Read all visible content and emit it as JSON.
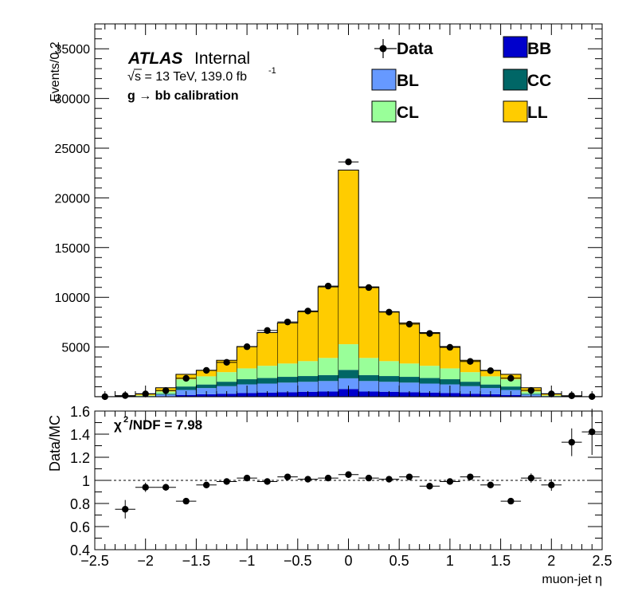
{
  "chart_data": [
    {
      "type": "bar",
      "stacked": true,
      "ylabel": "Events/0.2",
      "ylim": [
        0,
        37500
      ],
      "xlim": [
        -2.5,
        2.5
      ],
      "yticks": [
        "5000",
        "10000",
        "15000",
        "20000",
        "25000",
        "30000",
        "35000"
      ],
      "x": [
        -2.4,
        -2.2,
        -2.0,
        -1.8,
        -1.6,
        -1.4,
        -1.2,
        -1.0,
        -0.8,
        -0.6,
        -0.4,
        -0.2,
        0.0,
        0.2,
        0.4,
        0.6,
        0.8,
        1.0,
        1.2,
        1.4,
        1.6,
        1.8,
        2.0,
        2.2,
        2.4
      ],
      "series": [
        {
          "name": "BB",
          "color": "#0000cc",
          "values": [
            0,
            5,
            15,
            60,
            180,
            250,
            300,
            380,
            420,
            460,
            500,
            520,
            780,
            520,
            500,
            460,
            420,
            380,
            300,
            250,
            180,
            60,
            15,
            5,
            0
          ]
        },
        {
          "name": "BL",
          "color": "#6699ff",
          "values": [
            0,
            10,
            40,
            150,
            500,
            620,
            760,
            860,
            900,
            960,
            1000,
            1060,
            1070,
            1060,
            1000,
            960,
            900,
            860,
            760,
            620,
            500,
            150,
            40,
            10,
            0
          ]
        },
        {
          "name": "CC",
          "color": "#006666",
          "values": [
            0,
            5,
            20,
            90,
            350,
            360,
            450,
            520,
            560,
            580,
            580,
            600,
            850,
            600,
            580,
            580,
            560,
            520,
            450,
            360,
            350,
            90,
            20,
            5,
            0
          ]
        },
        {
          "name": "CL",
          "color": "#99ff99",
          "values": [
            0,
            15,
            60,
            220,
            720,
            820,
            960,
            1090,
            1230,
            1340,
            1500,
            1720,
            2580,
            1720,
            1500,
            1340,
            1230,
            1090,
            960,
            820,
            720,
            220,
            60,
            15,
            0
          ]
        },
        {
          "name": "LL",
          "color": "#ffcc00",
          "values": [
            0,
            45,
            165,
            380,
            500,
            600,
            1200,
            2200,
            3340,
            4080,
            4970,
            7150,
            17520,
            7150,
            4970,
            4080,
            3340,
            2200,
            1200,
            600,
            500,
            380,
            165,
            45,
            0
          ]
        }
      ],
      "data_series": {
        "name": "Data",
        "values": [
          8,
          115,
          280,
          620,
          1850,
          2650,
          3460,
          5030,
          6660,
          7520,
          8620,
          11130,
          23620,
          10980,
          8510,
          7300,
          6360,
          4970,
          3550,
          2620,
          1860,
          640,
          280,
          100,
          15
        ]
      },
      "annotations": {
        "atlas": "ATLAS",
        "atlas_status": "Internal",
        "energy_sqrt": "√",
        "energy_text": "s = 13 TeV, 139.0 fb",
        "energy_sup": "-1",
        "selection": "g  → bb calibration"
      },
      "legend_placement": "top-right"
    },
    {
      "type": "scatter",
      "xlabel": "muon-jet η",
      "ylabel": "Data/MC",
      "xlim": [
        -2.5,
        2.5
      ],
      "ylim": [
        0.4,
        1.6
      ],
      "reference_line": 1.0,
      "xticks": [
        "−2.5",
        "−2",
        "−1.5",
        "−1",
        "−0.5",
        "0",
        "0.5",
        "1",
        "1.5",
        "2",
        "2.5"
      ],
      "yticks": [
        "0.4",
        "0.6",
        "0.8",
        "1",
        "1.2",
        "1.4",
        "1.6"
      ],
      "x": [
        -2.2,
        -2.0,
        -1.8,
        -1.6,
        -1.4,
        -1.2,
        -1.0,
        -0.8,
        -0.6,
        -0.4,
        -0.2,
        0.0,
        0.2,
        0.4,
        0.6,
        0.8,
        1.0,
        1.2,
        1.4,
        1.6,
        1.8,
        2.0,
        2.2,
        2.4
      ],
      "values": [
        0.75,
        0.94,
        0.94,
        0.82,
        0.96,
        0.99,
        1.02,
        0.99,
        1.03,
        1.01,
        1.02,
        1.05,
        1.02,
        1.01,
        1.03,
        0.95,
        0.99,
        1.03,
        0.96,
        0.82,
        1.02,
        0.96,
        1.33,
        1.42
      ],
      "errors": [
        0.08,
        0.04,
        0.03,
        0.01,
        0.02,
        0.01,
        0.01,
        0.01,
        0.01,
        0.01,
        0.01,
        0.01,
        0.01,
        0.01,
        0.01,
        0.01,
        0.01,
        0.01,
        0.02,
        0.01,
        0.04,
        0.05,
        0.12,
        0.2
      ],
      "chi2_prefix": "χ",
      "chi2_sup": "2",
      "chi2_text": "/NDF = 7.98"
    }
  ]
}
